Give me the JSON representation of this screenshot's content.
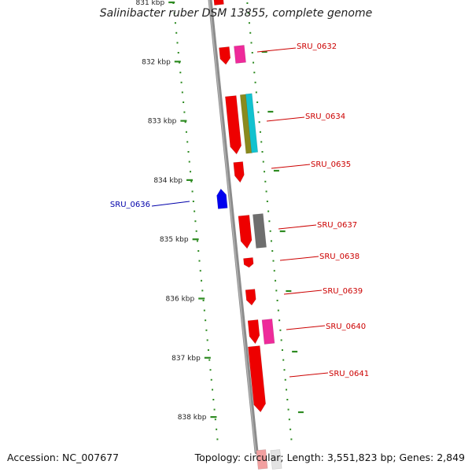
{
  "title": "Salinibacter ruber DSM 13855, complete genome",
  "footer": {
    "accession": "Accession: NC_007677",
    "topology": "Topology: circular; Length: 3,551,823 bp; Genes: 2,849"
  },
  "colors": {
    "backbone": "#8c8c8c",
    "tick": "#2e8b22",
    "label_red": "#cc0000",
    "label_blue": "#0000aa",
    "gene_red": "#ee0000",
    "gene_magenta": "#ee2a9a",
    "gene_olive": "#8a8a1e",
    "gene_cyan": "#12c2cf",
    "gene_gray": "#6e6e6e",
    "gene_blue": "#0000ee"
  },
  "kbp_ticks": [
    "831 kbp",
    "832 kbp",
    "833 kbp",
    "834 kbp",
    "835 kbp",
    "836 kbp",
    "837 kbp",
    "838 kbp"
  ],
  "gene_labels": [
    {
      "text": "SRU_0632",
      "strand": "plus"
    },
    {
      "text": "SRU_0634",
      "strand": "plus"
    },
    {
      "text": "SRU_0635",
      "strand": "plus"
    },
    {
      "text": "SRU_0636",
      "strand": "minus"
    },
    {
      "text": "SRU_0637",
      "strand": "plus"
    },
    {
      "text": "SRU_0638",
      "strand": "plus"
    },
    {
      "text": "SRU_0639",
      "strand": "plus"
    },
    {
      "text": "SRU_0640",
      "strand": "plus"
    },
    {
      "text": "SRU_0641",
      "strand": "plus"
    }
  ]
}
